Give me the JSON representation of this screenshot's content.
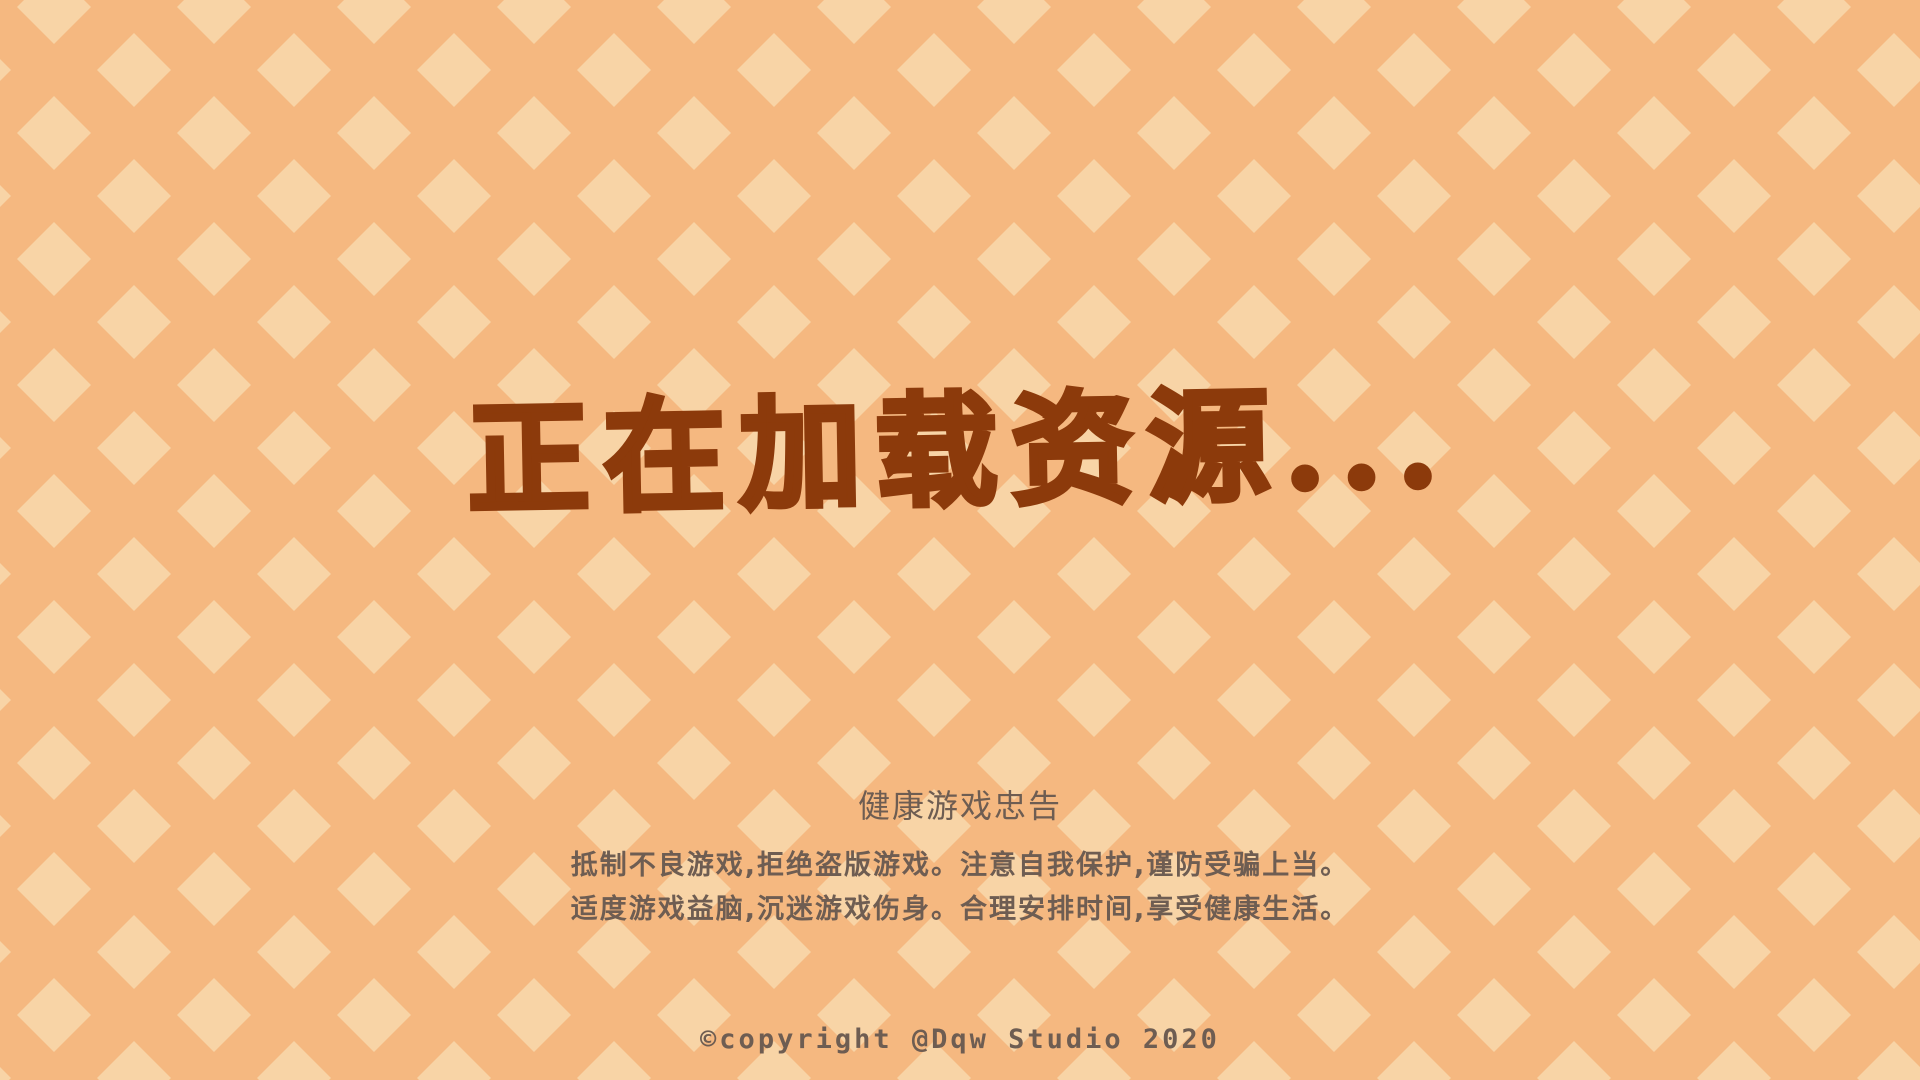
{
  "loading": {
    "text": "正在加载资源..."
  },
  "health_notice": {
    "title": "健康游戏忠告",
    "lines": [
      "抵制不良游戏,拒绝盗版游戏。注意自我保护,谨防受骗上当。",
      "适度游戏益脑,沉迷游戏伤身。合理安排时间,享受健康生活。"
    ]
  },
  "footer": {
    "copyright": "©copyright @Dqw Studio 2020"
  },
  "colors": {
    "background": "#f5b880",
    "diamond": "#f8d4a6",
    "title": "#8c3a0b",
    "notice_text": "#6e5d52"
  }
}
